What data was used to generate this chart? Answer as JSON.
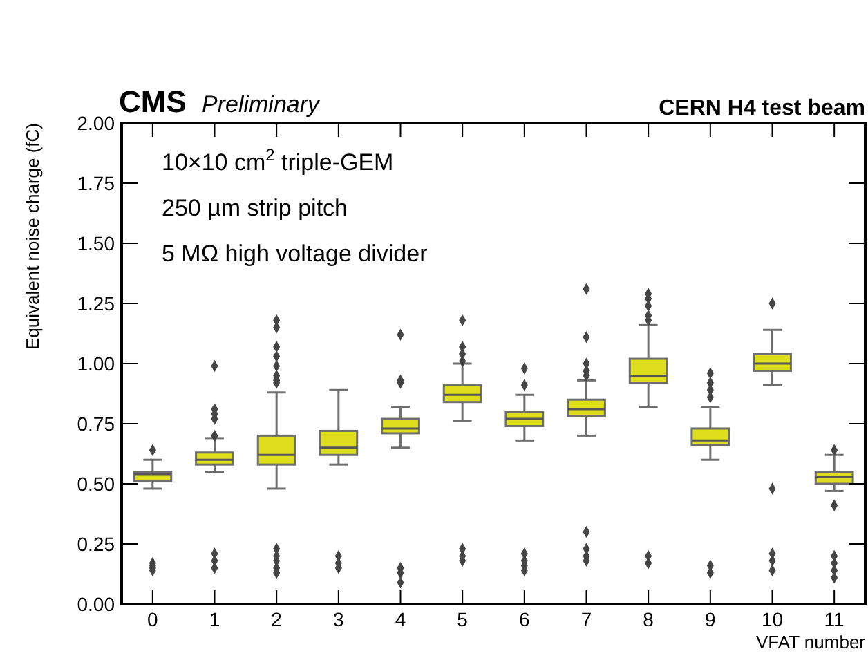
{
  "chart_data": {
    "type": "box",
    "title": "CMS",
    "subtitle": "Preliminary",
    "xlabel": "VFAT number",
    "ylabel": "Equivalent noise charge (fC)",
    "annotations": [
      "CERN H4 test beam",
      "10×10 cm$^{2}$ triple-GEM",
      "250 µm strip pitch",
      "5 MΩ high voltage divider"
    ],
    "categories": [
      "0",
      "1",
      "2",
      "3",
      "4",
      "5",
      "6",
      "7",
      "8",
      "9",
      "10",
      "11"
    ],
    "ylim": [
      0,
      2
    ],
    "yticks": [
      {
        "value": 0,
        "label": "0.00"
      },
      {
        "value": 0.25,
        "label": "0.25"
      },
      {
        "value": 0.5,
        "label": "0.50"
      },
      {
        "value": 0.75,
        "label": "0.75"
      },
      {
        "value": 1,
        "label": "1.00"
      },
      {
        "value": 1.25,
        "label": "1.25"
      },
      {
        "value": 1.5,
        "label": "1.50"
      },
      {
        "value": 1.75,
        "label": "1.75"
      },
      {
        "value": 2,
        "label": "2.00"
      }
    ],
    "grid": false,
    "marker": "diamond",
    "series": [
      {
        "color": "#dede1c",
        "boxes": [
          {
            "low": 0.48,
            "q1": 0.51,
            "median": 0.54,
            "q3": 0.55,
            "high": 0.6,
            "outliers": [
              0.64,
              0.17,
              0.16,
              0.15,
              0.14
            ]
          },
          {
            "low": 0.55,
            "q1": 0.58,
            "median": 0.6,
            "q3": 0.63,
            "high": 0.69,
            "outliers": [
              0.99,
              0.81,
              0.79,
              0.77,
              0.7,
              0.21,
              0.18,
              0.15
            ]
          },
          {
            "low": 0.48,
            "q1": 0.58,
            "median": 0.62,
            "q3": 0.7,
            "high": 0.88,
            "outliers": [
              1.18,
              1.15,
              1.07,
              1.03,
              0.99,
              0.95,
              0.93,
              0.92,
              0.23,
              0.2,
              0.18,
              0.15,
              0.13
            ]
          },
          {
            "low": 0.58,
            "q1": 0.62,
            "median": 0.65,
            "q3": 0.72,
            "high": 0.89,
            "outliers": [
              0.2,
              0.17,
              0.15
            ]
          },
          {
            "low": 0.65,
            "q1": 0.71,
            "median": 0.73,
            "q3": 0.77,
            "high": 0.82,
            "outliers": [
              1.12,
              0.93,
              0.92,
              0.15,
              0.13,
              0.09
            ]
          },
          {
            "low": 0.76,
            "q1": 0.84,
            "median": 0.87,
            "q3": 0.91,
            "high": 1.0,
            "outliers": [
              1.18,
              1.07,
              1.04,
              1.01,
              0.23,
              0.2,
              0.18
            ]
          },
          {
            "low": 0.68,
            "q1": 0.74,
            "median": 0.77,
            "q3": 0.8,
            "high": 0.87,
            "outliers": [
              0.98,
              0.91,
              0.21,
              0.18,
              0.16,
              0.14
            ]
          },
          {
            "low": 0.7,
            "q1": 0.78,
            "median": 0.81,
            "q3": 0.85,
            "high": 0.93,
            "outliers": [
              1.31,
              1.11,
              1.0,
              0.97,
              0.95,
              0.3,
              0.23,
              0.2,
              0.18
            ]
          },
          {
            "low": 0.82,
            "q1": 0.92,
            "median": 0.95,
            "q3": 1.02,
            "high": 1.16,
            "outliers": [
              1.29,
              1.27,
              1.24,
              1.2,
              1.18,
              0.2,
              0.17
            ]
          },
          {
            "low": 0.6,
            "q1": 0.66,
            "median": 0.68,
            "q3": 0.73,
            "high": 0.82,
            "outliers": [
              0.96,
              0.92,
              0.89,
              0.86,
              0.16,
              0.13
            ]
          },
          {
            "low": 0.91,
            "q1": 0.97,
            "median": 1.0,
            "q3": 1.04,
            "high": 1.14,
            "outliers": [
              1.25,
              0.48,
              0.21,
              0.18,
              0.14
            ]
          },
          {
            "low": 0.47,
            "q1": 0.5,
            "median": 0.53,
            "q3": 0.55,
            "high": 0.62,
            "outliers": [
              0.64,
              0.41,
              0.2,
              0.17,
              0.14,
              0.11
            ]
          }
        ]
      }
    ]
  }
}
